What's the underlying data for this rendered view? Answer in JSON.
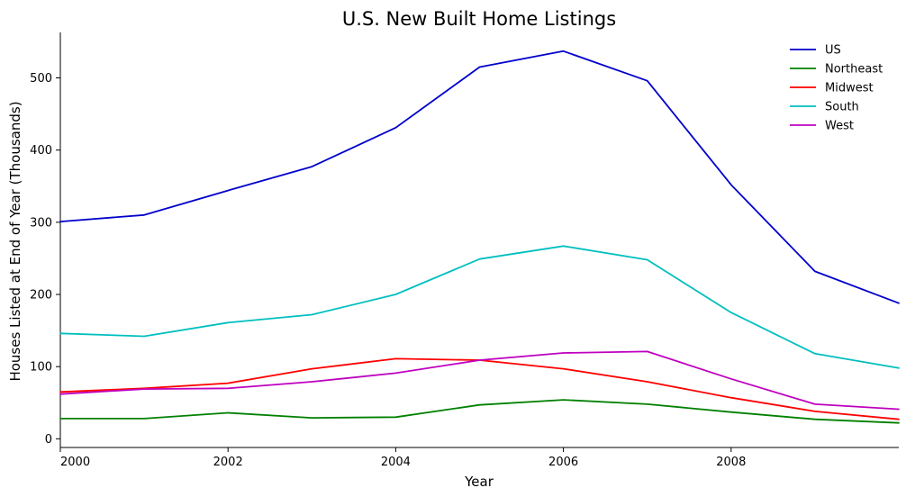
{
  "chart_data": {
    "type": "line",
    "title": "U.S. New Built Home Listings",
    "xlabel": "Year",
    "ylabel": "Houses Listed at End of Year (Thousands)",
    "x": [
      2000,
      2001,
      2002,
      2003,
      2004,
      2005,
      2006,
      2007,
      2008,
      2009,
      2010
    ],
    "xlim": [
      2000,
      2010
    ],
    "ylim": [
      -12,
      563
    ],
    "xticks": [
      2000,
      2002,
      2004,
      2006,
      2008
    ],
    "yticks": [
      0,
      100,
      200,
      300,
      400,
      500
    ],
    "grid": false,
    "legend_position": "top-right",
    "series": [
      {
        "name": "US",
        "color": "#0000cc",
        "values": [
          301,
          310,
          344,
          377,
          431,
          515,
          537,
          496,
          352,
          232,
          188
        ]
      },
      {
        "name": "Northeast",
        "color": "#008000",
        "values": [
          28,
          28,
          36,
          29,
          30,
          47,
          54,
          48,
          37,
          27,
          22
        ]
      },
      {
        "name": "Midwest",
        "color": "#ff0000",
        "values": [
          65,
          70,
          77,
          97,
          111,
          109,
          97,
          79,
          57,
          38,
          27
        ]
      },
      {
        "name": "South",
        "color": "#00bfbf",
        "values": [
          146,
          142,
          161,
          172,
          200,
          249,
          267,
          248,
          175,
          118,
          98
        ]
      },
      {
        "name": "West",
        "color": "#bf00bf",
        "values": [
          62,
          69,
          70,
          79,
          91,
          109,
          119,
          121,
          83,
          48,
          41
        ]
      }
    ]
  }
}
